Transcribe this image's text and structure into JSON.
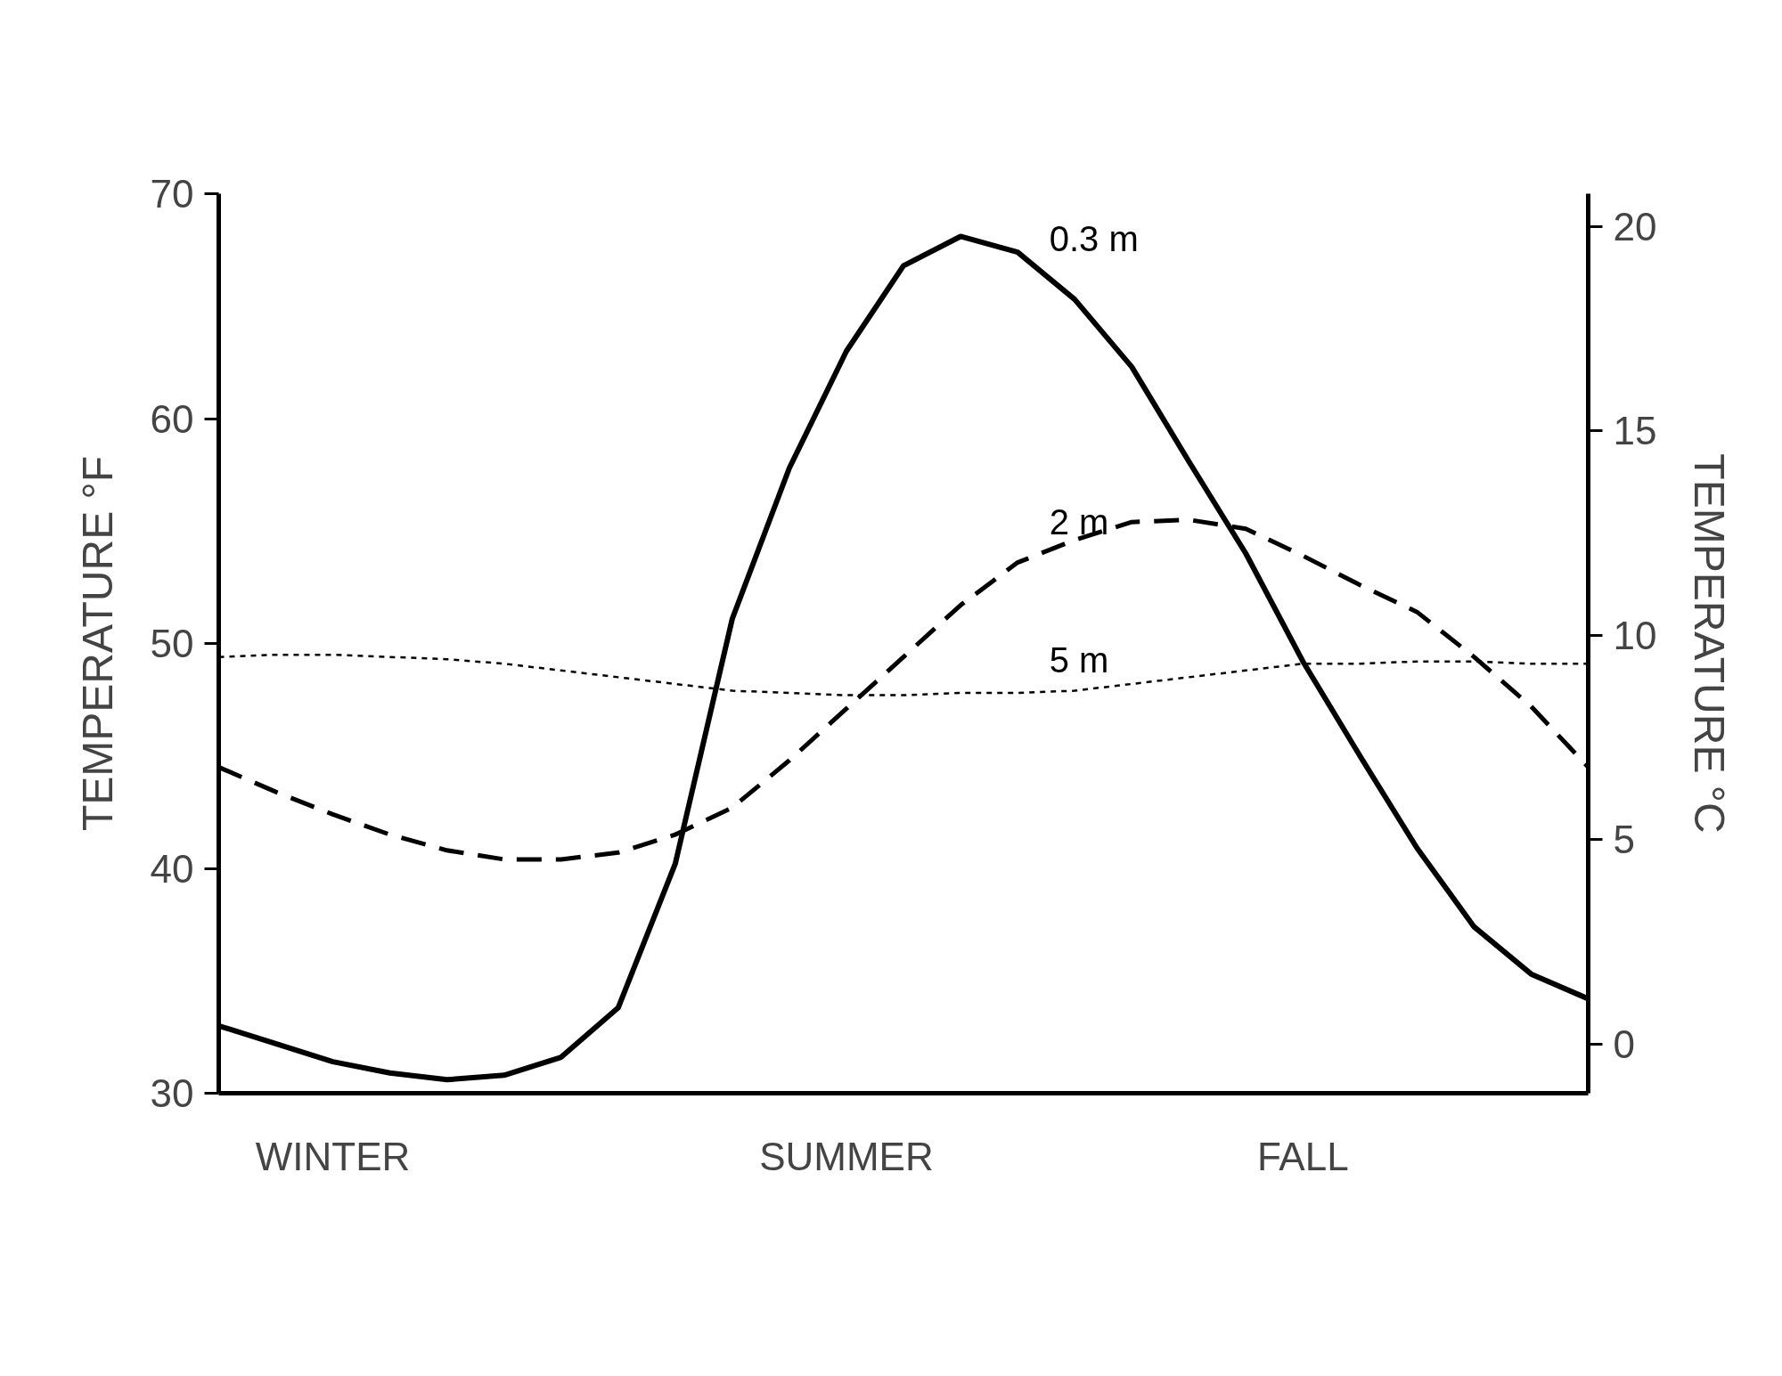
{
  "chart_data": {
    "type": "line",
    "ylabel": "TEMPERATURE °F",
    "y2label": "TEMPERATURE °C",
    "categories": [
      null,
      null,
      "WINTER",
      null,
      null,
      null,
      null,
      null,
      null,
      null,
      null,
      "SUMMER",
      null,
      null,
      null,
      null,
      null,
      null,
      null,
      "FALL",
      null,
      null,
      null,
      null,
      null
    ],
    "ylim": [
      30,
      70
    ],
    "yticks": [
      30,
      40,
      50,
      60,
      70
    ],
    "y2lim": [
      -1.2,
      20.8
    ],
    "y2ticks": [
      0,
      5,
      10,
      15,
      20
    ],
    "grid": false,
    "legend": false,
    "series": [
      {
        "name": "0.3 m",
        "color": "#000000",
        "line_style": "solid",
        "values": [
          33.0,
          32.2,
          31.4,
          30.9,
          30.6,
          30.8,
          31.6,
          33.8,
          40.2,
          51.1,
          57.8,
          63.0,
          66.8,
          68.1,
          67.4,
          65.3,
          62.3,
          58.1,
          54.0,
          49.2,
          45.0,
          40.9,
          37.4,
          35.3,
          34.2
        ]
      },
      {
        "name": "2 m",
        "color": "#000000",
        "line_style": "dashed",
        "values": [
          44.5,
          43.4,
          42.4,
          41.5,
          40.8,
          40.4,
          40.4,
          40.7,
          41.5,
          42.7,
          44.8,
          47.1,
          49.4,
          51.7,
          53.6,
          54.6,
          55.4,
          55.5,
          55.1,
          53.9,
          52.6,
          51.4,
          49.4,
          47.2,
          44.5
        ]
      },
      {
        "name": "5 m",
        "color": "#000000",
        "line_style": "dotted",
        "values": [
          49.4,
          49.5,
          49.5,
          49.4,
          49.3,
          49.1,
          48.8,
          48.5,
          48.2,
          47.9,
          47.8,
          47.7,
          47.7,
          47.8,
          47.8,
          47.9,
          48.2,
          48.5,
          48.8,
          49.1,
          49.1,
          49.2,
          49.2,
          49.1,
          49.1
        ]
      }
    ]
  }
}
